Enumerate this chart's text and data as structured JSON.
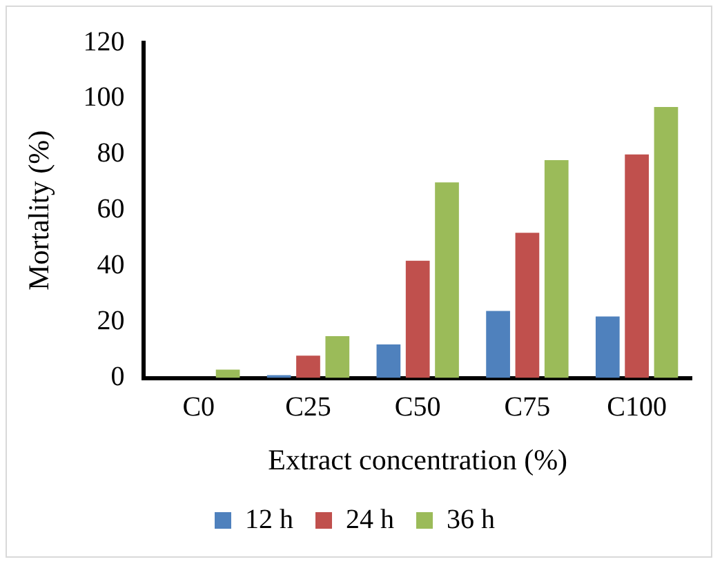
{
  "chart_data": {
    "type": "bar",
    "xlabel": "Extract concentration (%)",
    "ylabel": "Mortality (%)",
    "categories": [
      "C0",
      "C25",
      "C50",
      "C75",
      "C100"
    ],
    "series": [
      {
        "name": "12 h",
        "color": "#4f81bd",
        "values": [
          0,
          1,
          12,
          24,
          22
        ]
      },
      {
        "name": "24 h",
        "color": "#c0504d",
        "values": [
          0,
          8,
          42,
          52,
          80
        ]
      },
      {
        "name": "36 h",
        "color": "#9bbb59",
        "values": [
          3,
          15,
          70,
          78,
          97
        ]
      }
    ],
    "ylim": [
      0,
      120
    ],
    "yticks": [
      0,
      20,
      40,
      60,
      80,
      100,
      120
    ],
    "grid": false,
    "legend": "bottom"
  }
}
